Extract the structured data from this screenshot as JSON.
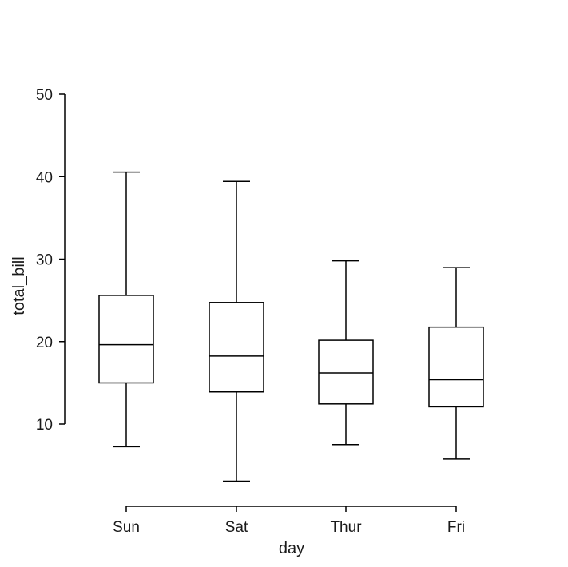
{
  "chart_data": {
    "type": "box",
    "xlabel": "day",
    "ylabel": "total_bill",
    "categories": [
      "Sun",
      "Sat",
      "Thur",
      "Fri"
    ],
    "yticks": [
      10,
      20,
      30,
      40,
      50
    ],
    "ylim": [
      0,
      50
    ],
    "grid": false,
    "boxes": [
      {
        "category": "Sun",
        "whisker_low": 7.25,
        "q1": 14.99,
        "median": 19.63,
        "q3": 25.6,
        "whisker_high": 40.55
      },
      {
        "category": "Sat",
        "whisker_low": 3.07,
        "q1": 13.9,
        "median": 18.24,
        "q3": 24.74,
        "whisker_high": 39.42
      },
      {
        "category": "Thur",
        "whisker_low": 7.51,
        "q1": 12.44,
        "median": 16.2,
        "q3": 20.16,
        "whisker_high": 29.8
      },
      {
        "category": "Fri",
        "whisker_low": 5.75,
        "q1": 12.09,
        "median": 15.38,
        "q3": 21.75,
        "whisker_high": 28.97
      }
    ],
    "line_color": "#000000",
    "fill_color": "#ffffff"
  }
}
